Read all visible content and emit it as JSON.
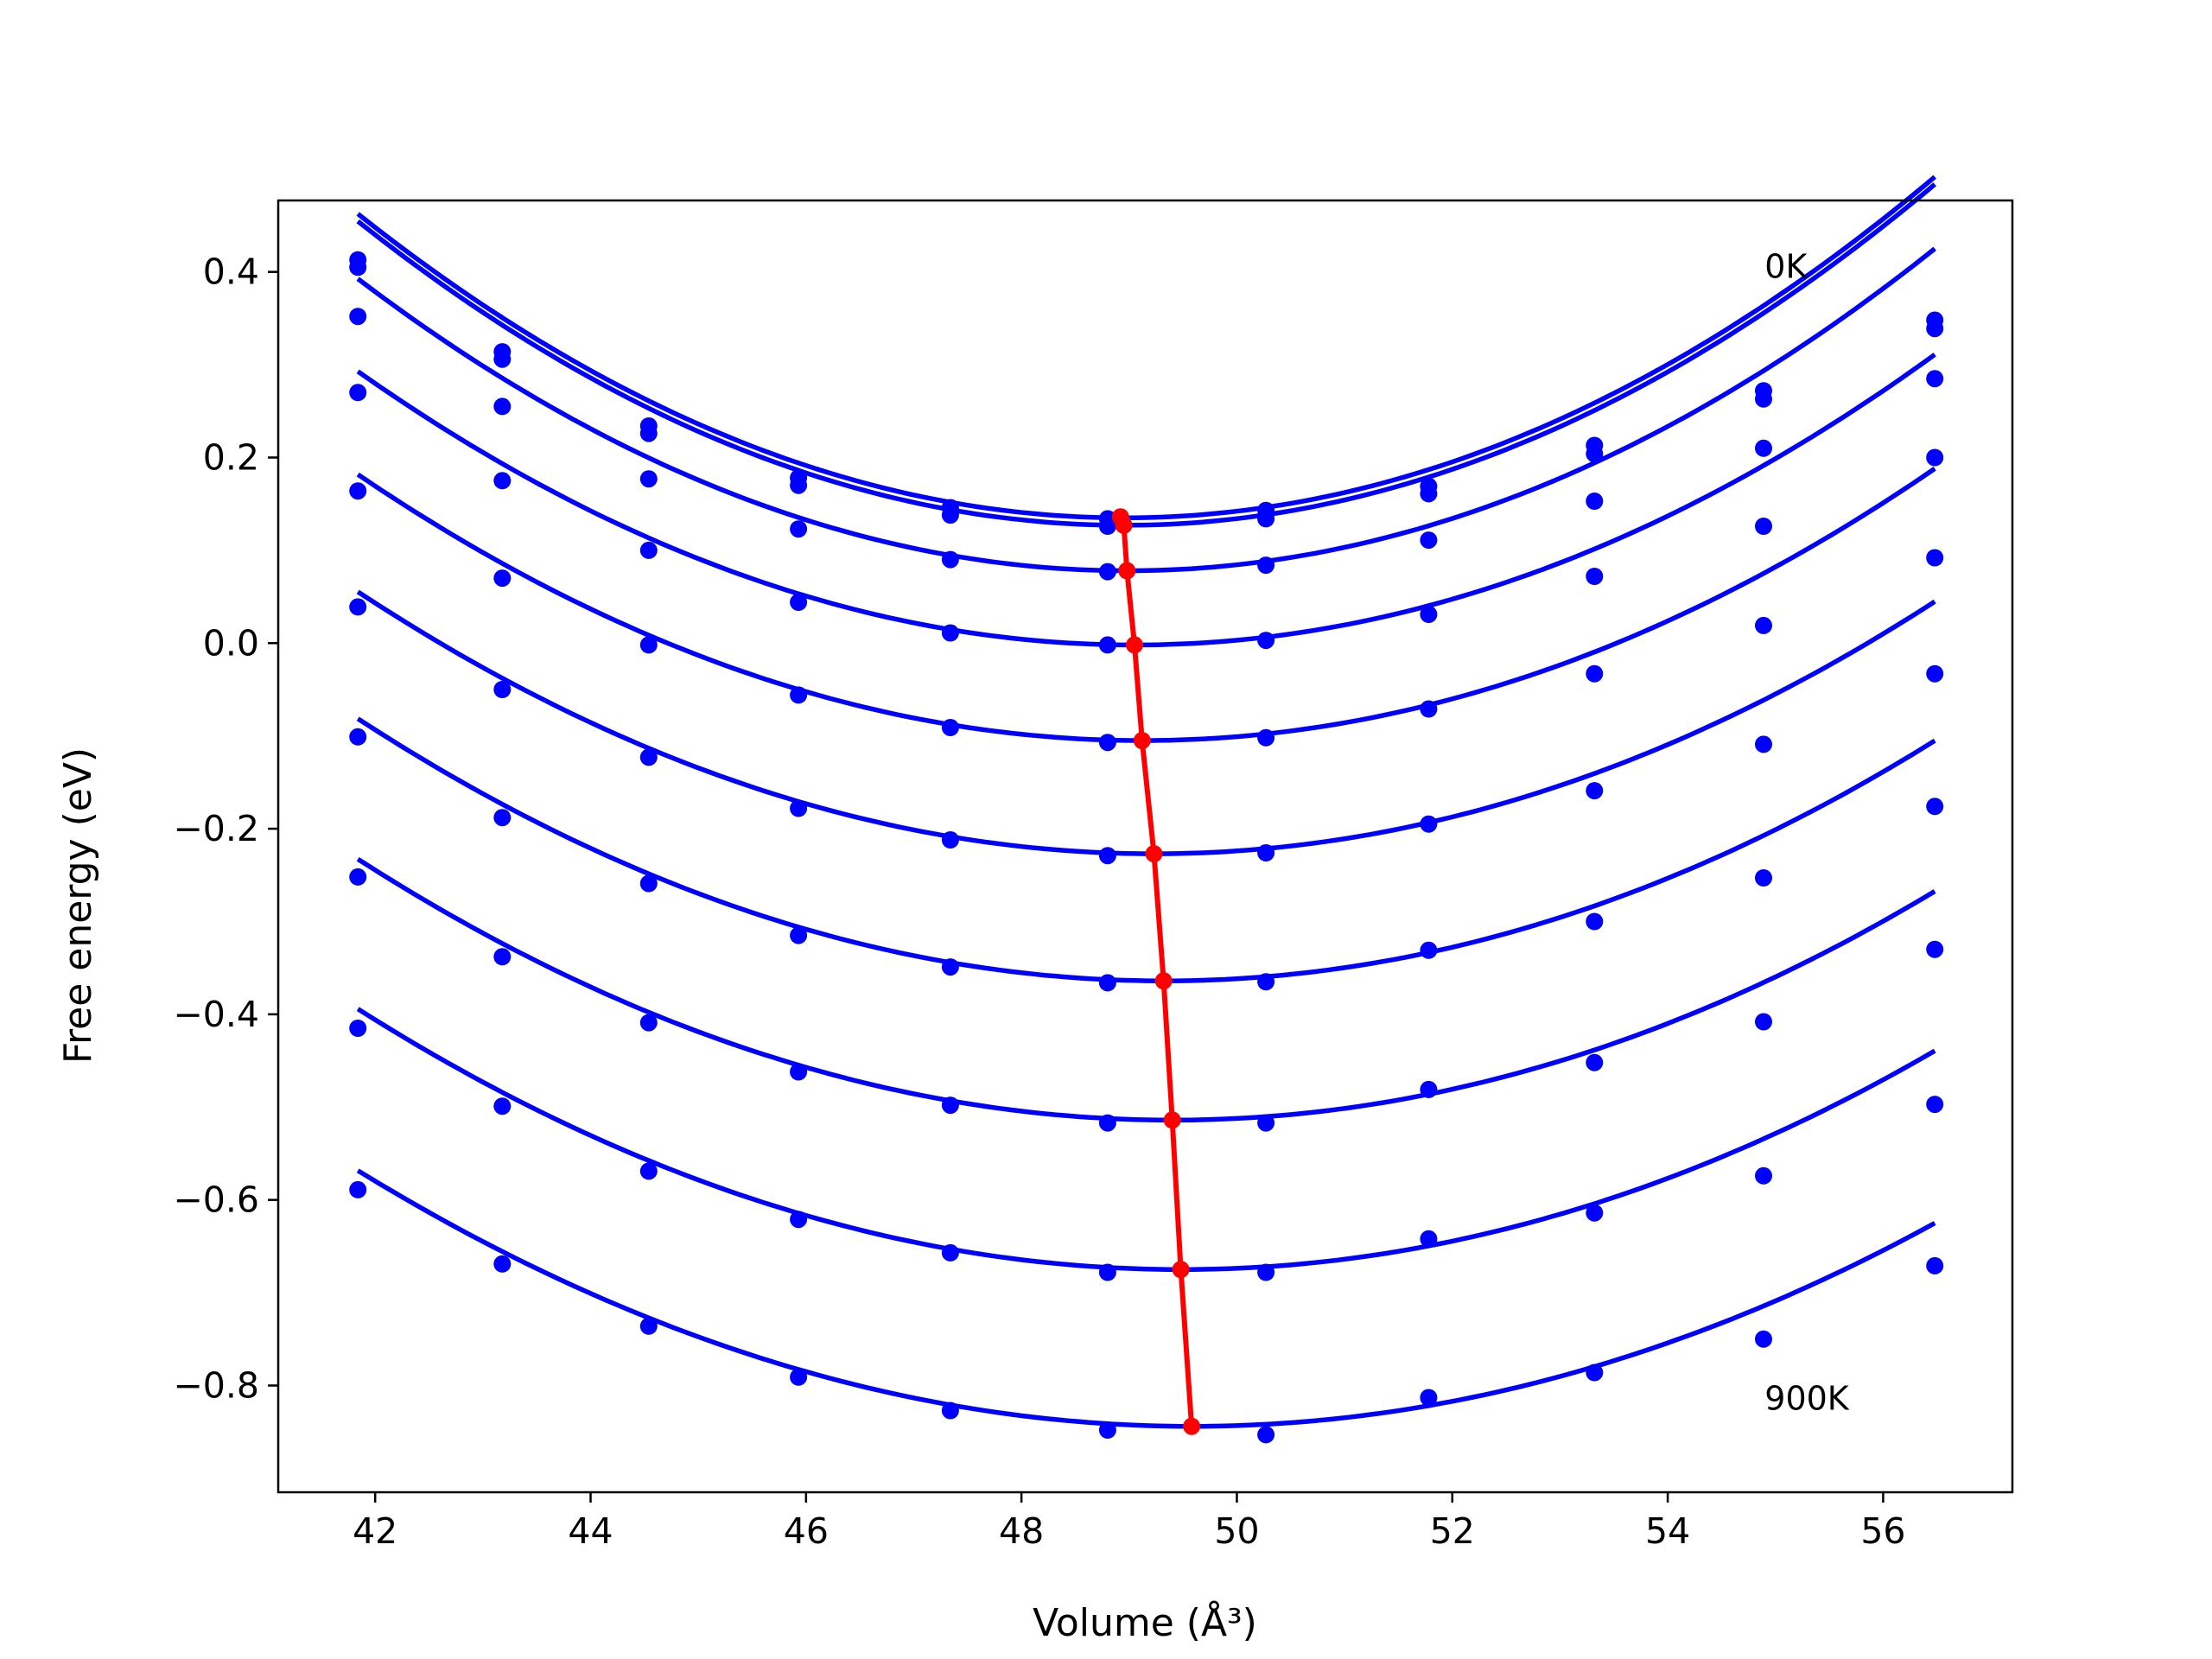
{
  "chart_data": {
    "type": "line",
    "xlabel": "Volume (Å³)",
    "ylabel": "Free energy (eV)",
    "xlim": [
      41.1,
      57.2
    ],
    "ylim": [
      -0.915,
      0.477
    ],
    "xticks": [
      42,
      44,
      46,
      48,
      50,
      52,
      54,
      56
    ],
    "xtick_labels": [
      "42",
      "44",
      "46",
      "48",
      "50",
      "52",
      "54",
      "56"
    ],
    "yticks": [
      -0.8,
      -0.6,
      -0.4,
      -0.2,
      0.0,
      0.2,
      0.4
    ],
    "ytick_labels": [
      "−0.8",
      "−0.6",
      "−0.4",
      "−0.2",
      "0.0",
      "0.2",
      "0.4"
    ],
    "grid": false,
    "legend": "none",
    "annotations": [
      {
        "text": "0K",
        "x": 54.9,
        "y": 0.405
      },
      {
        "text": "900K",
        "x": 54.9,
        "y": -0.815
      }
    ],
    "colors": {
      "curves": "#0000ff",
      "equilibrium": "#ff0000"
    },
    "volumes": [
      41.84,
      43.18,
      44.54,
      45.93,
      47.34,
      48.8,
      50.27,
      51.78,
      53.32,
      54.89,
      56.48
    ],
    "series": [
      {
        "points": [
          0.413,
          0.314,
          0.234,
          0.178,
          0.146,
          0.134,
          0.143,
          0.169,
          0.213,
          0.272,
          0.348
        ],
        "fit": {
          "a": 0.00648,
          "x0": 48.95,
          "c": 0.135
        }
      },
      {
        "points": [
          0.405,
          0.306,
          0.226,
          0.17,
          0.138,
          0.126,
          0.134,
          0.161,
          0.204,
          0.263,
          0.339
        ],
        "fit": {
          "a": 0.00648,
          "x0": 48.95,
          "c": 0.127
        }
      },
      {
        "points": [
          0.352,
          0.255,
          0.177,
          0.123,
          0.09,
          0.077,
          0.084,
          0.111,
          0.153,
          0.21,
          0.285
        ],
        "fit": {
          "a": 0.00617,
          "x0": 48.98,
          "c": 0.078
        }
      },
      {
        "points": [
          0.27,
          0.175,
          0.1,
          0.044,
          0.011,
          -0.002,
          0.003,
          0.031,
          0.072,
          0.126,
          0.2
        ],
        "fit": {
          "a": 0.00567,
          "x0": 49.05,
          "c": -0.002
        }
      },
      {
        "points": [
          0.164,
          0.07,
          -0.002,
          -0.056,
          -0.091,
          -0.107,
          -0.102,
          -0.071,
          -0.033,
          0.019,
          0.092
        ],
        "fit": {
          "a": 0.00541,
          "x0": 49.12,
          "c": -0.105
        }
      },
      {
        "points": [
          0.039,
          -0.05,
          -0.123,
          -0.178,
          -0.212,
          -0.229,
          -0.226,
          -0.195,
          -0.159,
          -0.109,
          -0.033
        ],
        "fit": {
          "a": 0.00517,
          "x0": 49.23,
          "c": -0.227
        }
      },
      {
        "points": [
          -0.101,
          -0.188,
          -0.259,
          -0.315,
          -0.349,
          -0.366,
          -0.365,
          -0.331,
          -0.3,
          -0.253,
          -0.176
        ],
        "fit": {
          "a": 0.00505,
          "x0": 49.32,
          "c": -0.364
        }
      },
      {
        "points": [
          -0.252,
          -0.338,
          -0.409,
          -0.462,
          -0.498,
          -0.517,
          -0.517,
          -0.481,
          -0.452,
          -0.408,
          -0.33
        ],
        "fit": {
          "a": 0.00492,
          "x0": 49.4,
          "c": -0.514
        }
      },
      {
        "points": [
          -0.415,
          -0.499,
          -0.569,
          -0.621,
          -0.657,
          -0.678,
          -0.678,
          -0.642,
          -0.614,
          -0.574,
          -0.497
        ],
        "fit": {
          "a": 0.00481,
          "x0": 49.48,
          "c": -0.675
        }
      },
      {
        "points": [
          -0.589,
          -0.669,
          -0.736,
          -0.791,
          -0.827,
          -0.848,
          -0.853,
          -0.813,
          -0.786,
          -0.75,
          -0.671
        ],
        "fit": {
          "a": 0.0046,
          "x0": 49.58,
          "c": -0.844
        }
      }
    ],
    "equilibrium": {
      "x": [
        48.92,
        48.95,
        48.98,
        49.05,
        49.12,
        49.23,
        49.32,
        49.4,
        49.48,
        49.58
      ],
      "y": [
        0.136,
        0.127,
        0.078,
        -0.002,
        -0.105,
        -0.227,
        -0.364,
        -0.514,
        -0.675,
        -0.844
      ]
    }
  }
}
